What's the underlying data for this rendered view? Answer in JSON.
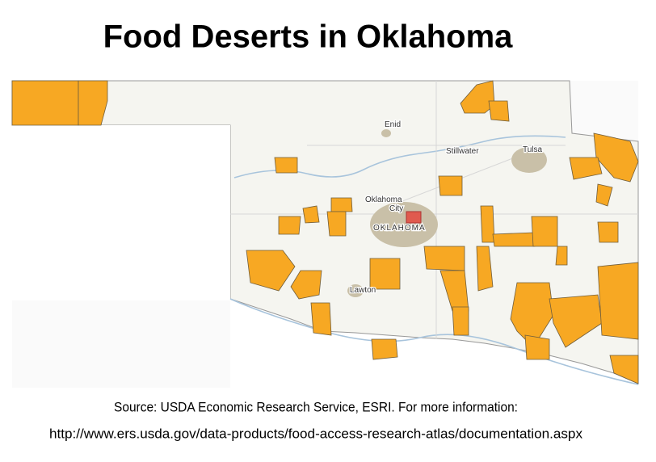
{
  "title": "Food Deserts in Oklahoma",
  "map": {
    "labels": [
      "Enid",
      "Stillwater",
      "Tulsa",
      "Oklahoma",
      "City",
      "OKLAHOMA",
      "Lawton"
    ]
  },
  "source": {
    "line1": "Source: USDA Economic Research Service, ESRI. For more information:",
    "line2": "http://www.ers.usda.gov/data-products/food-access-research-atlas/documentation.aspx"
  }
}
